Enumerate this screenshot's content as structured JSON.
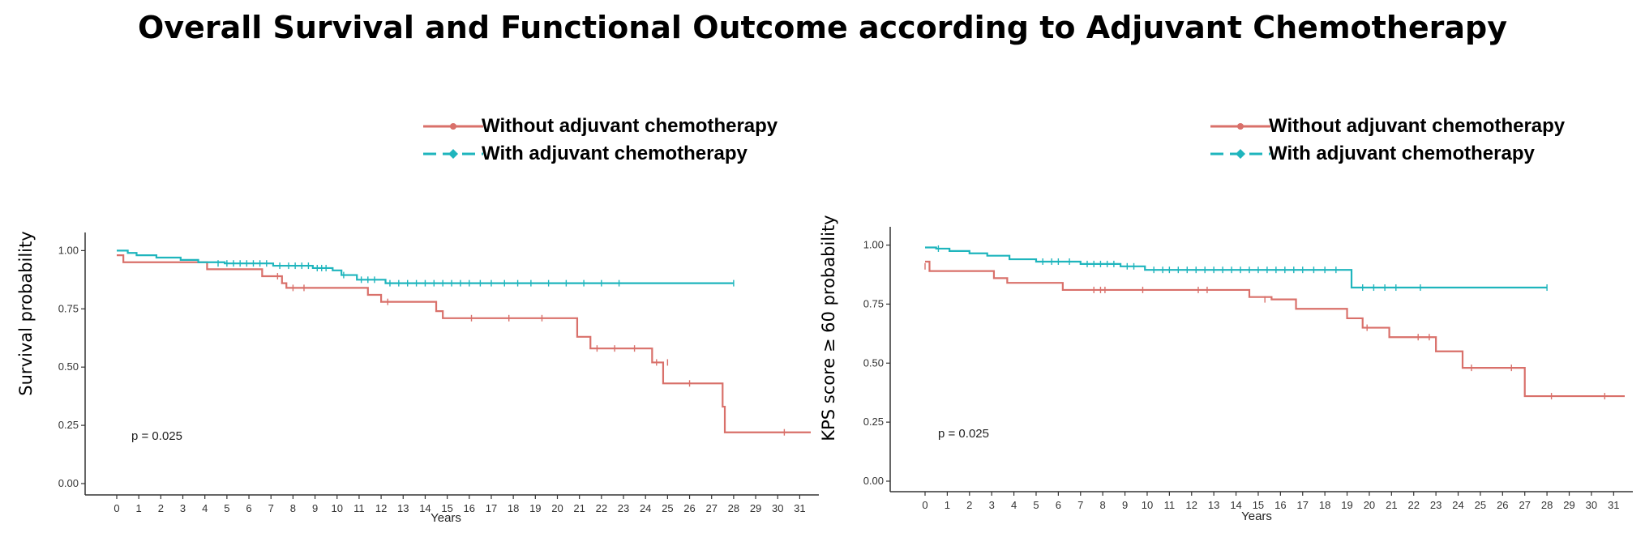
{
  "title": "Overall Survival and Functional Outcome according to Adjuvant Chemotherapy",
  "colors": {
    "without": "#d9706a",
    "with": "#1fb5bd"
  },
  "chart_data": [
    {
      "type": "line",
      "ylabel": "Survival probability",
      "xlabel": "Years",
      "xlim": [
        0,
        31.5
      ],
      "ylim": [
        0,
        1.05
      ],
      "x_ticks": [
        0,
        1,
        2,
        3,
        4,
        5,
        6,
        7,
        8,
        9,
        10,
        11,
        12,
        13,
        14,
        15,
        16,
        17,
        18,
        19,
        20,
        21,
        22,
        23,
        24,
        25,
        26,
        27,
        28,
        29,
        30,
        31
      ],
      "y_ticks": [
        "0.00",
        "0.25",
        "0.50",
        "0.75",
        "1.00"
      ],
      "grid": false,
      "annotation": "p = 0.025",
      "legend": {
        "position": "top-right",
        "entries": [
          "Without adjuvant chemotherapy",
          "With adjuvant chemotherapy"
        ]
      },
      "series": [
        {
          "name": "Without adjuvant chemotherapy",
          "steps": [
            [
              0,
              0.98
            ],
            [
              0.3,
              0.95
            ],
            [
              4.1,
              0.92
            ],
            [
              6.6,
              0.89
            ],
            [
              7.5,
              0.86
            ],
            [
              7.7,
              0.84
            ],
            [
              11.4,
              0.81
            ],
            [
              12.0,
              0.78
            ],
            [
              14.5,
              0.74
            ],
            [
              14.8,
              0.71
            ],
            [
              20.9,
              0.63
            ],
            [
              21.5,
              0.58
            ],
            [
              24.3,
              0.52
            ],
            [
              24.8,
              0.43
            ],
            [
              27.5,
              0.33
            ],
            [
              27.6,
              0.22
            ],
            [
              31.5,
              0.22
            ]
          ],
          "censors": [
            [
              7.3,
              0.89
            ],
            [
              8.0,
              0.84
            ],
            [
              8.5,
              0.84
            ],
            [
              12.3,
              0.78
            ],
            [
              16.1,
              0.71
            ],
            [
              17.8,
              0.71
            ],
            [
              19.3,
              0.71
            ],
            [
              21.8,
              0.58
            ],
            [
              22.6,
              0.58
            ],
            [
              23.5,
              0.58
            ],
            [
              24.5,
              0.52
            ],
            [
              25.0,
              0.52
            ],
            [
              26.0,
              0.43
            ],
            [
              30.3,
              0.22
            ]
          ]
        },
        {
          "name": "With adjuvant chemotherapy",
          "steps": [
            [
              0,
              1.0
            ],
            [
              0.5,
              0.99
            ],
            [
              0.9,
              0.98
            ],
            [
              1.8,
              0.97
            ],
            [
              2.9,
              0.96
            ],
            [
              3.7,
              0.95
            ],
            [
              4.9,
              0.945
            ],
            [
              7.1,
              0.935
            ],
            [
              8.9,
              0.925
            ],
            [
              9.8,
              0.915
            ],
            [
              10.2,
              0.895
            ],
            [
              10.9,
              0.875
            ],
            [
              12.2,
              0.86
            ],
            [
              28.0,
              0.86
            ]
          ],
          "censors": [
            [
              4.6,
              0.945
            ],
            [
              5.0,
              0.945
            ],
            [
              5.3,
              0.945
            ],
            [
              5.6,
              0.945
            ],
            [
              5.9,
              0.945
            ],
            [
              6.2,
              0.945
            ],
            [
              6.5,
              0.945
            ],
            [
              6.8,
              0.945
            ],
            [
              7.4,
              0.935
            ],
            [
              7.8,
              0.935
            ],
            [
              8.1,
              0.935
            ],
            [
              8.4,
              0.935
            ],
            [
              8.7,
              0.935
            ],
            [
              9.1,
              0.925
            ],
            [
              9.3,
              0.925
            ],
            [
              9.5,
              0.925
            ],
            [
              10.3,
              0.895
            ],
            [
              11.1,
              0.875
            ],
            [
              11.4,
              0.875
            ],
            [
              11.7,
              0.875
            ],
            [
              12.4,
              0.86
            ],
            [
              12.8,
              0.86
            ],
            [
              13.2,
              0.86
            ],
            [
              13.6,
              0.86
            ],
            [
              14.0,
              0.86
            ],
            [
              14.4,
              0.86
            ],
            [
              14.8,
              0.86
            ],
            [
              15.2,
              0.86
            ],
            [
              15.6,
              0.86
            ],
            [
              16.0,
              0.86
            ],
            [
              16.5,
              0.86
            ],
            [
              17.0,
              0.86
            ],
            [
              17.6,
              0.86
            ],
            [
              18.2,
              0.86
            ],
            [
              18.8,
              0.86
            ],
            [
              19.6,
              0.86
            ],
            [
              20.4,
              0.86
            ],
            [
              21.2,
              0.86
            ],
            [
              22.0,
              0.86
            ],
            [
              22.8,
              0.86
            ],
            [
              28.0,
              0.86
            ]
          ]
        }
      ]
    },
    {
      "type": "line",
      "ylabel": "KPS score ≥ 60 probability",
      "xlabel": "Years",
      "xlim": [
        0,
        31.5
      ],
      "ylim": [
        0,
        1.05
      ],
      "x_ticks": [
        0,
        1,
        2,
        3,
        4,
        5,
        6,
        7,
        8,
        9,
        10,
        11,
        12,
        13,
        14,
        15,
        16,
        17,
        18,
        19,
        20,
        21,
        22,
        23,
        24,
        25,
        26,
        27,
        28,
        29,
        30,
        31
      ],
      "y_ticks": [
        "0.00",
        "0.25",
        "0.50",
        "0.75",
        "1.00"
      ],
      "grid": false,
      "annotation": "p = 0.025",
      "legend": {
        "position": "top-right",
        "entries": [
          "Without adjuvant chemotherapy",
          "With adjuvant chemotherapy"
        ]
      },
      "series": [
        {
          "name": "Without adjuvant chemotherapy",
          "steps": [
            [
              0,
              0.93
            ],
            [
              0.2,
              0.89
            ],
            [
              3.1,
              0.86
            ],
            [
              3.7,
              0.84
            ],
            [
              6.2,
              0.81
            ],
            [
              14.6,
              0.78
            ],
            [
              15.6,
              0.77
            ],
            [
              16.7,
              0.73
            ],
            [
              19.0,
              0.69
            ],
            [
              19.7,
              0.65
            ],
            [
              20.9,
              0.61
            ],
            [
              23.0,
              0.55
            ],
            [
              24.2,
              0.48
            ],
            [
              27.0,
              0.36
            ],
            [
              31.5,
              0.36
            ]
          ],
          "censors": [
            [
              0,
              0.91
            ],
            [
              7.6,
              0.81
            ],
            [
              7.9,
              0.81
            ],
            [
              8.1,
              0.81
            ],
            [
              9.8,
              0.81
            ],
            [
              12.3,
              0.81
            ],
            [
              12.7,
              0.81
            ],
            [
              15.3,
              0.77
            ],
            [
              19.9,
              0.65
            ],
            [
              22.2,
              0.61
            ],
            [
              22.7,
              0.61
            ],
            [
              24.6,
              0.48
            ],
            [
              26.4,
              0.48
            ],
            [
              28.2,
              0.36
            ],
            [
              30.6,
              0.36
            ]
          ]
        },
        {
          "name": "With adjuvant chemotherapy",
          "steps": [
            [
              0,
              0.99
            ],
            [
              0.5,
              0.985
            ],
            [
              1.1,
              0.975
            ],
            [
              2.0,
              0.965
            ],
            [
              2.8,
              0.955
            ],
            [
              3.8,
              0.94
            ],
            [
              5.0,
              0.93
            ],
            [
              7.0,
              0.92
            ],
            [
              8.8,
              0.91
            ],
            [
              9.9,
              0.895
            ],
            [
              19.2,
              0.82
            ],
            [
              28.0,
              0.82
            ]
          ],
          "censors": [
            [
              0.6,
              0.985
            ],
            [
              5.3,
              0.93
            ],
            [
              5.7,
              0.93
            ],
            [
              6.0,
              0.93
            ],
            [
              6.5,
              0.93
            ],
            [
              7.3,
              0.92
            ],
            [
              7.6,
              0.92
            ],
            [
              7.9,
              0.92
            ],
            [
              8.2,
              0.92
            ],
            [
              8.5,
              0.92
            ],
            [
              9.1,
              0.91
            ],
            [
              9.4,
              0.91
            ],
            [
              10.3,
              0.895
            ],
            [
              10.7,
              0.895
            ],
            [
              11.0,
              0.895
            ],
            [
              11.4,
              0.895
            ],
            [
              11.8,
              0.895
            ],
            [
              12.2,
              0.895
            ],
            [
              12.6,
              0.895
            ],
            [
              13.0,
              0.895
            ],
            [
              13.4,
              0.895
            ],
            [
              13.8,
              0.895
            ],
            [
              14.2,
              0.895
            ],
            [
              14.6,
              0.895
            ],
            [
              15.0,
              0.895
            ],
            [
              15.4,
              0.895
            ],
            [
              15.8,
              0.895
            ],
            [
              16.2,
              0.895
            ],
            [
              16.6,
              0.895
            ],
            [
              17.0,
              0.895
            ],
            [
              17.5,
              0.895
            ],
            [
              18.0,
              0.895
            ],
            [
              18.5,
              0.895
            ],
            [
              19.7,
              0.82
            ],
            [
              20.2,
              0.82
            ],
            [
              20.7,
              0.82
            ],
            [
              21.2,
              0.82
            ],
            [
              22.3,
              0.82
            ],
            [
              28.0,
              0.82
            ]
          ]
        }
      ]
    }
  ]
}
